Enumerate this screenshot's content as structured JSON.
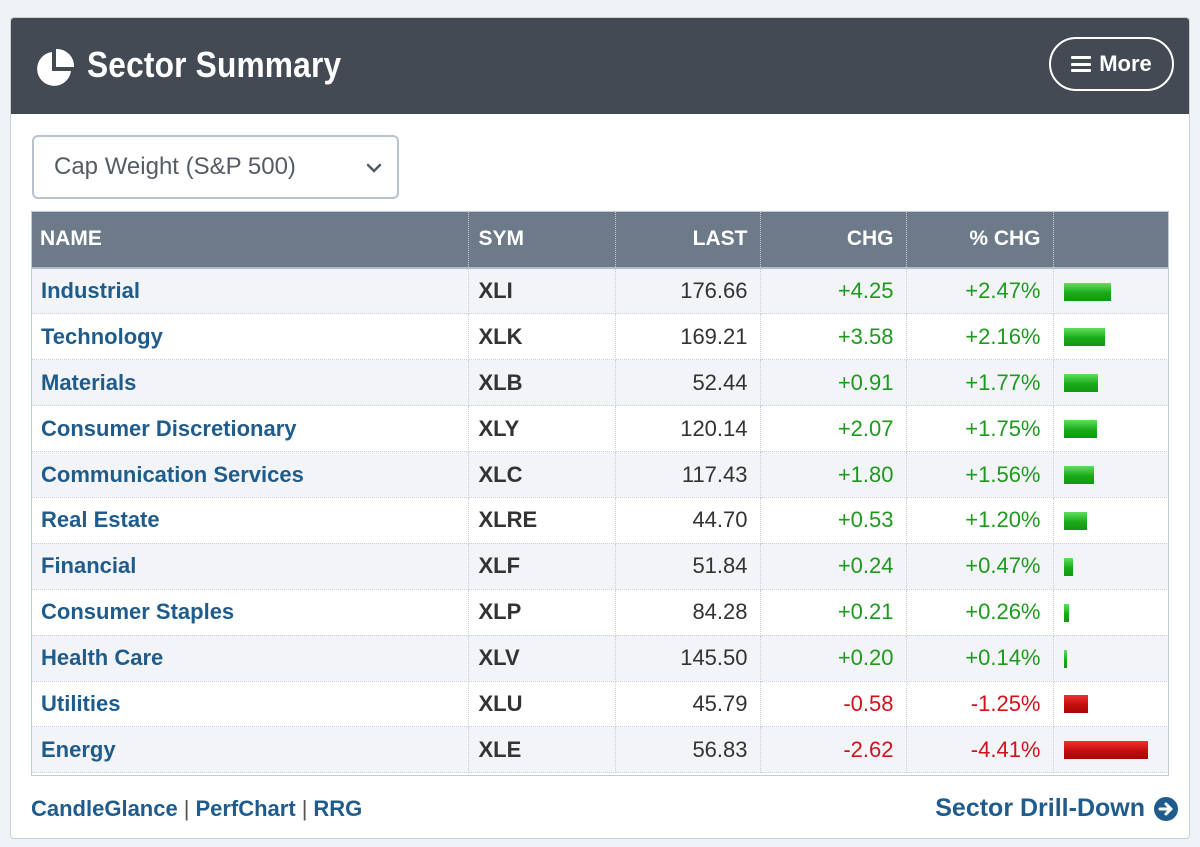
{
  "panel": {
    "title": "Sector Summary",
    "title_icon": "pie-chart-icon",
    "more_button_label": "More",
    "more_button_icon": "hamburger-menu-icon"
  },
  "weighting_select": {
    "selected": "Cap Weight (S&P 500)"
  },
  "table": {
    "headers": {
      "name": "NAME",
      "sym": "SYM",
      "last": "LAST",
      "chg": "CHG",
      "pct_chg": "% CHG"
    },
    "rows": [
      {
        "name": "Industrial",
        "sym": "XLI",
        "last": "176.66",
        "chg": "+4.25",
        "pct_chg": "+2.47%",
        "pct_value": 2.47
      },
      {
        "name": "Technology",
        "sym": "XLK",
        "last": "169.21",
        "chg": "+3.58",
        "pct_chg": "+2.16%",
        "pct_value": 2.16
      },
      {
        "name": "Materials",
        "sym": "XLB",
        "last": "52.44",
        "chg": "+0.91",
        "pct_chg": "+1.77%",
        "pct_value": 1.77
      },
      {
        "name": "Consumer Discretionary",
        "sym": "XLY",
        "last": "120.14",
        "chg": "+2.07",
        "pct_chg": "+1.75%",
        "pct_value": 1.75
      },
      {
        "name": "Communication Services",
        "sym": "XLC",
        "last": "117.43",
        "chg": "+1.80",
        "pct_chg": "+1.56%",
        "pct_value": 1.56
      },
      {
        "name": "Real Estate",
        "sym": "XLRE",
        "last": "44.70",
        "chg": "+0.53",
        "pct_chg": "+1.20%",
        "pct_value": 1.2
      },
      {
        "name": "Financial",
        "sym": "XLF",
        "last": "51.84",
        "chg": "+0.24",
        "pct_chg": "+0.47%",
        "pct_value": 0.47
      },
      {
        "name": "Consumer Staples",
        "sym": "XLP",
        "last": "84.28",
        "chg": "+0.21",
        "pct_chg": "+0.26%",
        "pct_value": 0.26
      },
      {
        "name": "Health Care",
        "sym": "XLV",
        "last": "145.50",
        "chg": "+0.20",
        "pct_chg": "+0.14%",
        "pct_value": 0.14
      },
      {
        "name": "Utilities",
        "sym": "XLU",
        "last": "45.79",
        "chg": "-0.58",
        "pct_chg": "-1.25%",
        "pct_value": -1.25
      },
      {
        "name": "Energy",
        "sym": "XLE",
        "last": "56.83",
        "chg": "-2.62",
        "pct_chg": "-4.41%",
        "pct_value": -4.41
      }
    ]
  },
  "footer": {
    "links": [
      "CandleGlance",
      "PerfChart",
      "RRG"
    ],
    "drill_down_label": "Sector Drill-Down",
    "drill_down_icon": "arrow-circle-right-icon"
  },
  "colors": {
    "header_bg": "#434a54",
    "table_header_bg": "#6c7a89",
    "link_blue": "#1f5c8c",
    "positive_green": "#1d9a1d",
    "negative_red": "#d0121b"
  }
}
